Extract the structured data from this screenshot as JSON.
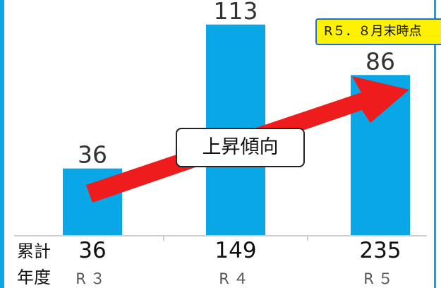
{
  "chart_data": {
    "type": "bar",
    "categories": [
      "R３",
      "R４",
      "R５"
    ],
    "values": [
      36,
      113,
      86
    ],
    "cumulative": [
      36,
      149,
      235
    ],
    "ylim": [
      0,
      125
    ],
    "annotation": "上昇傾向",
    "note": "R５．８月末時点",
    "row_labels": {
      "cumulative": "累計",
      "year": "年度"
    }
  },
  "colors": {
    "bar": "#0aa7e6",
    "arrow": "#ee1c1c",
    "note_background": "#fff200",
    "border": "#0aa7e6"
  }
}
